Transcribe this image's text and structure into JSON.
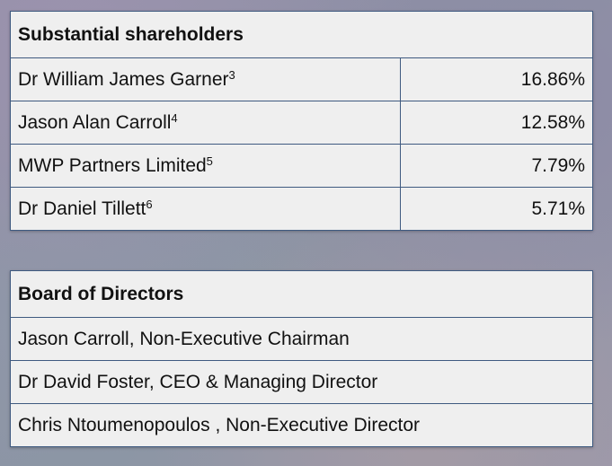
{
  "shareholders": {
    "title": "Substantial shareholders",
    "rows": [
      {
        "name": "Dr William James Garner",
        "footnote": "3",
        "percent": "16.86%"
      },
      {
        "name": "Jason Alan Carroll",
        "footnote": "4",
        "percent": "12.58%"
      },
      {
        "name": "MWP Partners Limited",
        "footnote": "5",
        "percent": "7.79%"
      },
      {
        "name": "Dr Daniel Tillett",
        "footnote": "6",
        "percent": "5.71%"
      }
    ]
  },
  "board": {
    "title": "Board of Directors",
    "rows": [
      "Jason Carroll, Non-Executive Chairman",
      "Dr David Foster, CEO & Managing Director",
      "Chris Ntoumenopoulos , Non-Executive Director"
    ]
  },
  "colors": {
    "panel_background": "#efefef",
    "border": "#3f5a80",
    "text": "#111111"
  }
}
